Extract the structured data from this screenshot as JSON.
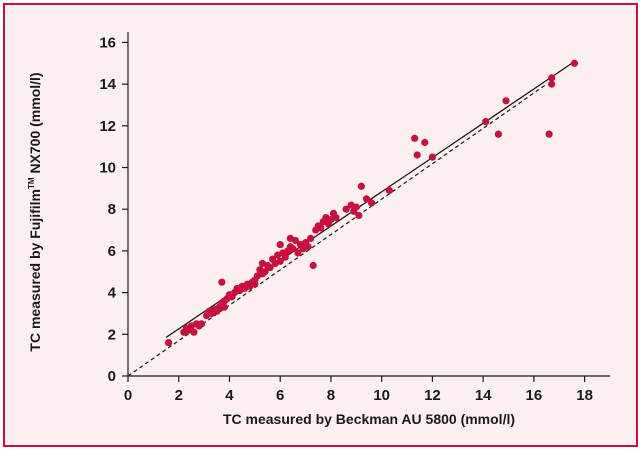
{
  "chart_data": {
    "type": "scatter",
    "xlabel": "TC measured by Beckman AU 5800 (mmol/l)",
    "ylabel_prefix": "TC measured by Fujifilm",
    "ylabel_tm": "TM",
    "ylabel_suffix": " NX700 (mmol/l)",
    "xlim": [
      0,
      19
    ],
    "ylim": [
      0,
      16.5
    ],
    "x_ticks": [
      0,
      2,
      4,
      6,
      8,
      10,
      12,
      14,
      16,
      18
    ],
    "y_ticks": [
      0,
      2,
      4,
      6,
      8,
      10,
      12,
      14,
      16
    ],
    "grid": false,
    "point_color": "#c8103e",
    "regression_line": {
      "x": [
        1.5,
        17.5
      ],
      "y": [
        1.85,
        15.0
      ]
    },
    "identity_line": {
      "x": [
        0,
        16.5
      ],
      "y": [
        0,
        14.0
      ]
    },
    "points": [
      {
        "x": 1.6,
        "y": 1.6
      },
      {
        "x": 2.2,
        "y": 2.1
      },
      {
        "x": 2.3,
        "y": 2.3
      },
      {
        "x": 2.4,
        "y": 2.2
      },
      {
        "x": 2.5,
        "y": 2.4
      },
      {
        "x": 2.6,
        "y": 2.1
      },
      {
        "x": 2.7,
        "y": 2.5
      },
      {
        "x": 2.8,
        "y": 2.4
      },
      {
        "x": 2.9,
        "y": 2.5
      },
      {
        "x": 3.1,
        "y": 2.9
      },
      {
        "x": 3.2,
        "y": 3.1
      },
      {
        "x": 3.3,
        "y": 3.0
      },
      {
        "x": 3.4,
        "y": 3.2
      },
      {
        "x": 3.5,
        "y": 3.1
      },
      {
        "x": 3.6,
        "y": 3.3
      },
      {
        "x": 3.7,
        "y": 3.5
      },
      {
        "x": 3.7,
        "y": 4.5
      },
      {
        "x": 3.8,
        "y": 3.6
      },
      {
        "x": 3.8,
        "y": 3.3
      },
      {
        "x": 3.9,
        "y": 3.7
      },
      {
        "x": 4.0,
        "y": 3.9
      },
      {
        "x": 4.1,
        "y": 3.8
      },
      {
        "x": 4.2,
        "y": 4.0
      },
      {
        "x": 4.3,
        "y": 4.2
      },
      {
        "x": 4.4,
        "y": 4.1
      },
      {
        "x": 4.5,
        "y": 4.3
      },
      {
        "x": 4.6,
        "y": 4.2
      },
      {
        "x": 4.7,
        "y": 4.4
      },
      {
        "x": 4.8,
        "y": 4.3
      },
      {
        "x": 4.9,
        "y": 4.5
      },
      {
        "x": 5.0,
        "y": 4.4
      },
      {
        "x": 5.0,
        "y": 4.6
      },
      {
        "x": 5.1,
        "y": 4.8
      },
      {
        "x": 5.2,
        "y": 5.1
      },
      {
        "x": 5.3,
        "y": 4.9
      },
      {
        "x": 5.3,
        "y": 5.4
      },
      {
        "x": 5.4,
        "y": 5.0
      },
      {
        "x": 5.5,
        "y": 5.3
      },
      {
        "x": 5.6,
        "y": 5.2
      },
      {
        "x": 5.7,
        "y": 5.6
      },
      {
        "x": 5.8,
        "y": 5.4
      },
      {
        "x": 5.9,
        "y": 5.8
      },
      {
        "x": 6.0,
        "y": 5.5
      },
      {
        "x": 6.0,
        "y": 6.3
      },
      {
        "x": 6.1,
        "y": 5.9
      },
      {
        "x": 6.2,
        "y": 5.7
      },
      {
        "x": 6.3,
        "y": 6.0
      },
      {
        "x": 6.4,
        "y": 6.2
      },
      {
        "x": 6.4,
        "y": 6.6
      },
      {
        "x": 6.5,
        "y": 6.1
      },
      {
        "x": 6.6,
        "y": 6.5
      },
      {
        "x": 6.7,
        "y": 5.9
      },
      {
        "x": 6.8,
        "y": 6.3
      },
      {
        "x": 6.9,
        "y": 6.1
      },
      {
        "x": 7.0,
        "y": 6.4
      },
      {
        "x": 7.1,
        "y": 6.2
      },
      {
        "x": 7.2,
        "y": 6.6
      },
      {
        "x": 7.3,
        "y": 5.3
      },
      {
        "x": 7.4,
        "y": 7.0
      },
      {
        "x": 7.5,
        "y": 7.2
      },
      {
        "x": 7.6,
        "y": 7.1
      },
      {
        "x": 7.7,
        "y": 7.4
      },
      {
        "x": 7.8,
        "y": 7.6
      },
      {
        "x": 7.9,
        "y": 7.3
      },
      {
        "x": 8.0,
        "y": 7.5
      },
      {
        "x": 8.1,
        "y": 7.8
      },
      {
        "x": 8.2,
        "y": 7.6
      },
      {
        "x": 8.6,
        "y": 8.0
      },
      {
        "x": 8.8,
        "y": 8.2
      },
      {
        "x": 8.9,
        "y": 7.9
      },
      {
        "x": 9.0,
        "y": 8.1
      },
      {
        "x": 9.1,
        "y": 7.7
      },
      {
        "x": 9.2,
        "y": 9.1
      },
      {
        "x": 9.4,
        "y": 8.5
      },
      {
        "x": 9.6,
        "y": 8.3
      },
      {
        "x": 10.3,
        "y": 8.9
      },
      {
        "x": 11.3,
        "y": 11.4
      },
      {
        "x": 11.4,
        "y": 10.6
      },
      {
        "x": 11.7,
        "y": 11.2
      },
      {
        "x": 12.0,
        "y": 10.5
      },
      {
        "x": 14.1,
        "y": 12.2
      },
      {
        "x": 14.6,
        "y": 11.6
      },
      {
        "x": 14.9,
        "y": 13.2
      },
      {
        "x": 16.6,
        "y": 11.6
      },
      {
        "x": 16.7,
        "y": 14.3
      },
      {
        "x": 16.7,
        "y": 14.0
      },
      {
        "x": 17.6,
        "y": 15.0
      }
    ]
  }
}
